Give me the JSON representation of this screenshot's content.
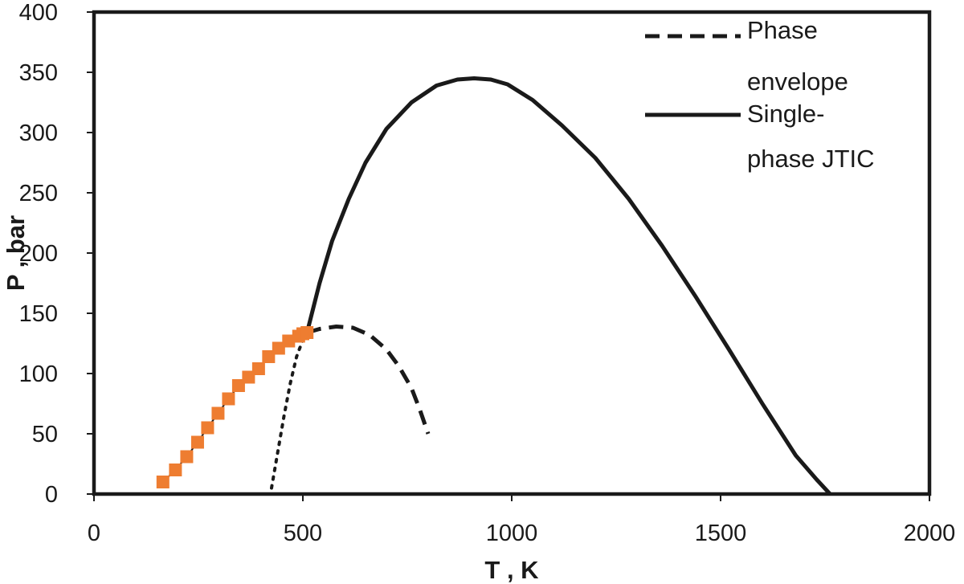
{
  "chart_data": {
    "type": "line",
    "title": "",
    "xlabel": "T , K",
    "ylabel": "P , bar",
    "xlim": [
      0,
      2000
    ],
    "ylim": [
      0,
      400
    ],
    "x_ticks": [
      "0",
      "500",
      "1000",
      "1500",
      "2000"
    ],
    "y_ticks": [
      "0",
      "50",
      "100",
      "150",
      "200",
      "250",
      "300",
      "350",
      "400"
    ],
    "grid": false,
    "legend_position": "top-right",
    "legend": [
      {
        "label_lines": [
          "Phase",
          "envelope"
        ],
        "style": "dashed"
      },
      {
        "label_lines": [
          "Single-",
          "phase JTIC"
        ],
        "style": "solid"
      }
    ],
    "colors": {
      "line": "#1a1a1a",
      "marker": "#ee7d31"
    },
    "series": [
      {
        "name": "Phase envelope",
        "style": "dashed",
        "x": [
          510,
          540,
          580,
          620,
          660,
          700,
          730,
          760,
          780,
          800
        ],
        "y": [
          134,
          137,
          139,
          138,
          132,
          120,
          106,
          88,
          70,
          50
        ]
      },
      {
        "name": "Single-phase JTIC",
        "style": "solid",
        "x": [
          510,
          540,
          570,
          610,
          650,
          700,
          760,
          820,
          870,
          910,
          950,
          990,
          1050,
          1120,
          1200,
          1280,
          1360,
          1440,
          1520,
          1600,
          1680,
          1730,
          1762
        ],
        "y": [
          134,
          175,
          210,
          245,
          275,
          303,
          325,
          339,
          344,
          345,
          344,
          340,
          327,
          306,
          279,
          245,
          206,
          164,
          120,
          75,
          32,
          12,
          0
        ]
      },
      {
        "style": "dotted",
        "x": [
          425,
          440,
          455,
          470,
          485,
          500,
          510
        ],
        "y": [
          5,
          35,
          65,
          92,
          114,
          128,
          134
        ]
      },
      {
        "style": "markers",
        "x": [
          165,
          195,
          222,
          248,
          272,
          297,
          322,
          346,
          370,
          394,
          418,
          442,
          466,
          490,
          500,
          510
        ],
        "y": [
          10,
          20,
          31,
          43,
          55,
          67,
          79,
          90,
          97,
          104,
          114,
          121,
          127,
          131,
          133,
          134
        ]
      }
    ]
  }
}
